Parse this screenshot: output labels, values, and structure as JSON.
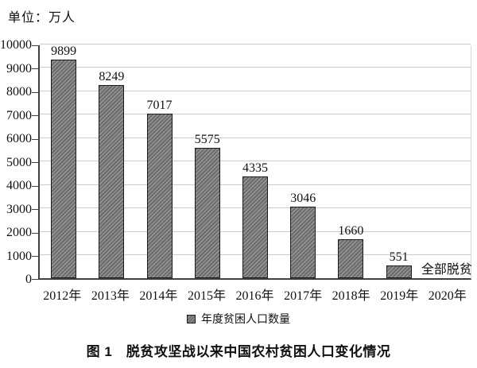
{
  "unit_label": "单位：万人",
  "caption": "图 1　脱贫攻坚战以来中国农村贫困人口变化情况",
  "legend_label": "年度贫困人口数量",
  "colors": {
    "bar_base": "#6d6d6d",
    "bar_stripe": "#9a9a9a",
    "bar_border": "#1c1c1c",
    "gridline": "#cccccc",
    "axis": "#3f3f3f",
    "text": "#111111",
    "background": "#ffffff"
  },
  "chart_data": {
    "type": "bar",
    "title": "图 1 脱贫攻坚战以来中国农村贫困人口变化情况",
    "unit": "万人",
    "ylabel": "单位：万人",
    "categories": [
      "2012年",
      "2013年",
      "2014年",
      "2015年",
      "2016年",
      "2017年",
      "2018年",
      "2019年",
      "2020年"
    ],
    "values": [
      9899,
      8249,
      7017,
      5575,
      4335,
      3046,
      1660,
      551,
      0
    ],
    "bar_labels": [
      "9899",
      "8249",
      "7017",
      "5575",
      "4335",
      "3046",
      "1660",
      "551",
      "全部脱贫"
    ],
    "annotation": {
      "category": "2020年",
      "text": "全部脱贫"
    },
    "ylim": [
      0,
      10000
    ],
    "y_ticks": [
      0,
      1000,
      2000,
      3000,
      4000,
      5000,
      6000,
      7000,
      8000,
      9000,
      10000
    ],
    "legend": [
      "年度贫困人口数量"
    ],
    "legend_position": "bottom",
    "grid": true,
    "bar_pattern": "diagonal-hatch"
  }
}
